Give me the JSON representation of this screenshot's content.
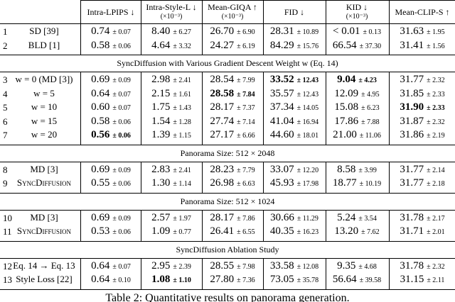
{
  "table": {
    "header": [
      {
        "label": "Intra-LPIPS ↓"
      },
      {
        "label": "Intra-Style-L ↓",
        "sub": "(×10⁻³)"
      },
      {
        "label": "Mean-GIQA ↑",
        "sub": "(×10⁻³)"
      },
      {
        "label": "FID ↓"
      },
      {
        "label": "KID ↓",
        "sub": "(×10⁻³)"
      },
      {
        "label": "Mean-CLIP-S ↑"
      }
    ],
    "sections": [
      {
        "rows": [
          {
            "index": "1",
            "method": "SD [39]",
            "cells": [
              {
                "v": "0.74",
                "e": "± 0.07"
              },
              {
                "v": "8.40",
                "e": "± 6.27"
              },
              {
                "v": "26.70",
                "e": "± 6.90"
              },
              {
                "v": "28.31",
                "e": "± 10.89"
              },
              {
                "v": "< 0.01",
                "e": "± 0.13"
              },
              {
                "v": "31.63",
                "e": "± 1.95"
              }
            ]
          },
          {
            "index": "2",
            "method": "BLD [1]",
            "cells": [
              {
                "v": "0.58",
                "e": "± 0.06"
              },
              {
                "v": "4.64",
                "e": "± 3.32"
              },
              {
                "v": "24.27",
                "e": "± 6.19"
              },
              {
                "v": "84.29",
                "e": "± 15.76"
              },
              {
                "v": "66.54",
                "e": "± 37.30"
              },
              {
                "v": "31.41",
                "e": "± 1.56"
              }
            ]
          }
        ]
      },
      {
        "title": "SyncDiffusion with Various Gradient Descent Weight w (Eq. 14)",
        "rows": [
          {
            "index": "3",
            "method": "w = 0 (MD [3])",
            "cells": [
              {
                "v": "0.69",
                "e": "± 0.09"
              },
              {
                "v": "2.98",
                "e": "± 2.41"
              },
              {
                "v": "28.54",
                "e": "± 7.99"
              },
              {
                "v": "33.52",
                "e": "± 12.43",
                "bold": true
              },
              {
                "v": "9.04",
                "e": "± 4.23",
                "bold": true
              },
              {
                "v": "31.77",
                "e": "± 2.32"
              }
            ]
          },
          {
            "index": "4",
            "method": "w = 5",
            "cells": [
              {
                "v": "0.64",
                "e": "± 0.07"
              },
              {
                "v": "2.15",
                "e": "± 1.61"
              },
              {
                "v": "28.58",
                "e": "± 7.84",
                "bold": true
              },
              {
                "v": "35.57",
                "e": "± 12.43"
              },
              {
                "v": "12.09",
                "e": "± 4.95"
              },
              {
                "v": "31.85",
                "e": "± 2.33"
              }
            ]
          },
          {
            "index": "5",
            "method": "w = 10",
            "cells": [
              {
                "v": "0.60",
                "e": "± 0.07"
              },
              {
                "v": "1.75",
                "e": "± 1.43"
              },
              {
                "v": "28.17",
                "e": "± 7.37"
              },
              {
                "v": "37.34",
                "e": "± 14.05"
              },
              {
                "v": "15.08",
                "e": "± 6.23"
              },
              {
                "v": "31.90",
                "e": "± 2.33",
                "bold": true
              }
            ]
          },
          {
            "index": "6",
            "method": "w = 15",
            "cells": [
              {
                "v": "0.58",
                "e": "± 0.06"
              },
              {
                "v": "1.54",
                "e": "± 1.28"
              },
              {
                "v": "27.74",
                "e": "± 7.14"
              },
              {
                "v": "41.04",
                "e": "± 16.94"
              },
              {
                "v": "17.86",
                "e": "± 7.88"
              },
              {
                "v": "31.87",
                "e": "± 2.32"
              }
            ]
          },
          {
            "index": "7",
            "method": "w = 20",
            "cells": [
              {
                "v": "0.56",
                "e": "± 0.06",
                "bold": true
              },
              {
                "v": "1.39",
                "e": "± 1.15"
              },
              {
                "v": "27.17",
                "e": "± 6.66"
              },
              {
                "v": "44.60",
                "e": "± 18.01"
              },
              {
                "v": "21.00",
                "e": "± 11.06"
              },
              {
                "v": "31.86",
                "e": "± 2.19"
              }
            ]
          }
        ]
      },
      {
        "title": "Panorama Size: 512 × 2048",
        "rows": [
          {
            "index": "8",
            "method": "MD [3]",
            "cells": [
              {
                "v": "0.69",
                "e": "± 0.09"
              },
              {
                "v": "2.83",
                "e": "± 2.41"
              },
              {
                "v": "28.23",
                "e": "± 7.79"
              },
              {
                "v": "33.07",
                "e": "± 12.20"
              },
              {
                "v": "8.58",
                "e": "± 3.99"
              },
              {
                "v": "31.77",
                "e": "± 2.14"
              }
            ]
          },
          {
            "index": "9",
            "method": "SyncDiffusion",
            "smallcaps": true,
            "cells": [
              {
                "v": "0.55",
                "e": "± 0.06"
              },
              {
                "v": "1.30",
                "e": "± 1.14"
              },
              {
                "v": "26.98",
                "e": "± 6.63"
              },
              {
                "v": "45.93",
                "e": "± 17.98"
              },
              {
                "v": "18.77",
                "e": "± 10.19"
              },
              {
                "v": "31.77",
                "e": "± 2.18"
              }
            ]
          }
        ]
      },
      {
        "title": "Panorama Size: 512 × 1024",
        "rows": [
          {
            "index": "10",
            "method": "MD [3]",
            "cells": [
              {
                "v": "0.69",
                "e": "± 0.09"
              },
              {
                "v": "2.57",
                "e": "± 1.97"
              },
              {
                "v": "28.17",
                "e": "± 7.86"
              },
              {
                "v": "30.66",
                "e": "± 11.29"
              },
              {
                "v": "5.24",
                "e": "± 3.54"
              },
              {
                "v": "31.78",
                "e": "± 2.17"
              }
            ]
          },
          {
            "index": "11",
            "method": "SyncDiffusion",
            "smallcaps": true,
            "cells": [
              {
                "v": "0.53",
                "e": "± 0.06"
              },
              {
                "v": "1.09",
                "e": "± 0.77"
              },
              {
                "v": "26.41",
                "e": "± 6.55"
              },
              {
                "v": "40.35",
                "e": "± 16.23"
              },
              {
                "v": "13.20",
                "e": "± 7.62"
              },
              {
                "v": "31.71",
                "e": "± 2.01"
              }
            ]
          }
        ]
      },
      {
        "title": "SyncDiffusion Ablation Study",
        "rows": [
          {
            "index": "12",
            "method": "Eq. 14 → Eq. 13",
            "cells": [
              {
                "v": "0.64",
                "e": "± 0.07"
              },
              {
                "v": "2.95",
                "e": "± 2.39"
              },
              {
                "v": "28.55",
                "e": "± 7.98"
              },
              {
                "v": "33.58",
                "e": "± 12.08"
              },
              {
                "v": "9.35",
                "e": "± 4.68"
              },
              {
                "v": "31.78",
                "e": "± 2.32"
              }
            ]
          },
          {
            "index": "13",
            "method": "Style Loss [22]",
            "cells": [
              {
                "v": "0.64",
                "e": "± 0.10"
              },
              {
                "v": "1.08",
                "e": "± 1.10",
                "bold": true
              },
              {
                "v": "27.80",
                "e": "± 7.36"
              },
              {
                "v": "73.05",
                "e": "± 35.78"
              },
              {
                "v": "56.64",
                "e": "± 39.58"
              },
              {
                "v": "31.15",
                "e": "± 2.11"
              }
            ]
          }
        ]
      }
    ]
  },
  "caption": "Table 2: Quantitative results on panorama generation."
}
